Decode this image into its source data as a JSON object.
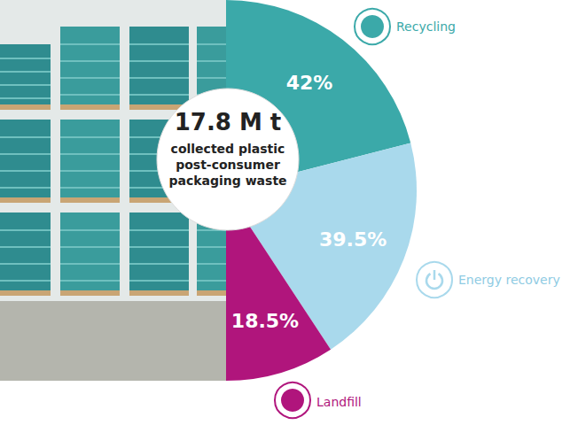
{
  "chart_data": {
    "type": "pie",
    "title": "17.8 M t",
    "subtitle": "collected plastic post-consumer packaging waste",
    "categories": [
      "Recycling",
      "Energy recovery",
      "Landfill"
    ],
    "values": [
      42,
      39.5,
      18.5
    ],
    "value_labels": [
      "42%",
      "39.5%",
      "18.5%"
    ],
    "colors": [
      "#3ba9a9",
      "#a9d9ec",
      "#b0157c"
    ],
    "data_labels": true
  }
}
